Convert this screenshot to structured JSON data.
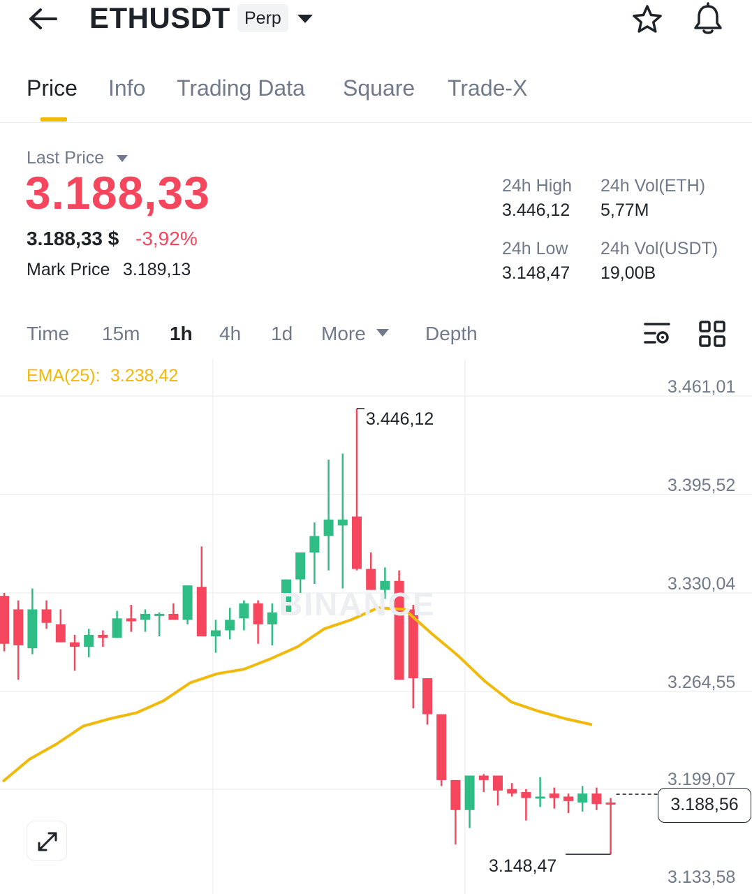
{
  "header": {
    "symbol": "ETHUSDT",
    "badge": "Perp",
    "icons": [
      "back-arrow-icon",
      "chevron-down-icon",
      "star-icon",
      "bell-icon"
    ]
  },
  "tabs": [
    "Price",
    "Info",
    "Trading Data",
    "Square",
    "Trade-X"
  ],
  "active_tab": "Price",
  "price": {
    "last_price_label": "Last Price",
    "last_price": "3.188,33",
    "fiat_price": "3.188,33 $",
    "change_pct": "-3,92%",
    "mark_price_label": "Mark Price",
    "mark_price": "3.189,13"
  },
  "stats": {
    "high_label": "24h High",
    "high": "3.446,12",
    "vol_eth_label": "24h Vol(ETH)",
    "vol_eth": "5,77M",
    "low_label": "24h Low",
    "low": "3.148,47",
    "vol_usdt_label": "24h Vol(USDT)",
    "vol_usdt": "19,00B"
  },
  "intervals": [
    "Time",
    "15m",
    "1h",
    "4h",
    "1d",
    "More",
    "Depth"
  ],
  "active_interval": "1h",
  "colors": {
    "up": "#2ebd85",
    "down": "#f6465d",
    "ema": "#f0b90b",
    "accent": "#f0b90b"
  },
  "chart": {
    "ema_label": "EMA(25):",
    "ema_value": "3.238,42",
    "y_ticks": [
      "3.461,01",
      "3.395,52",
      "3.330,04",
      "3.264,55",
      "3.199,07",
      "3.133,58"
    ],
    "high_marker": "3.446,12",
    "low_marker": "3.148,47",
    "current_price": "3.188,56",
    "watermark": "BINANCE"
  },
  "chart_data": {
    "type": "candlestick",
    "interval": "1h",
    "ylim": [
      3133.58,
      3461.01
    ],
    "candles": [
      {
        "o": 3321,
        "h": 3323,
        "c": 3289,
        "l": 3284,
        "dir": "down"
      },
      {
        "o": 3312,
        "h": 3318,
        "c": 3288,
        "l": 3265,
        "dir": "down"
      },
      {
        "o": 3286,
        "h": 3326,
        "c": 3312,
        "l": 3282,
        "dir": "up"
      },
      {
        "o": 3312,
        "h": 3318,
        "c": 3303,
        "l": 3299,
        "dir": "down"
      },
      {
        "o": 3302,
        "h": 3312,
        "c": 3290,
        "l": 3290,
        "dir": "down"
      },
      {
        "o": 3290,
        "h": 3295,
        "c": 3287,
        "l": 3271,
        "dir": "down"
      },
      {
        "o": 3287,
        "h": 3299,
        "c": 3295,
        "l": 3280,
        "dir": "up"
      },
      {
        "o": 3295,
        "h": 3298,
        "c": 3293,
        "l": 3287,
        "dir": "down"
      },
      {
        "o": 3293,
        "h": 3311,
        "c": 3306,
        "l": 3293,
        "dir": "up"
      },
      {
        "o": 3306,
        "h": 3315,
        "c": 3304,
        "l": 3297,
        "dir": "down"
      },
      {
        "o": 3305,
        "h": 3312,
        "c": 3309,
        "l": 3297,
        "dir": "up"
      },
      {
        "o": 3309,
        "h": 3310,
        "c": 3308,
        "l": 3294,
        "dir": "up"
      },
      {
        "o": 3309,
        "h": 3316,
        "c": 3305,
        "l": 3305,
        "dir": "down"
      },
      {
        "o": 3305,
        "h": 3328,
        "c": 3328,
        "l": 3302,
        "dir": "up"
      },
      {
        "o": 3327,
        "h": 3354,
        "c": 3294,
        "l": 3294,
        "dir": "down"
      },
      {
        "o": 3294,
        "h": 3305,
        "c": 3298,
        "l": 3283,
        "dir": "up"
      },
      {
        "o": 3298,
        "h": 3313,
        "c": 3305,
        "l": 3292,
        "dir": "up"
      },
      {
        "o": 3306,
        "h": 3318,
        "c": 3316,
        "l": 3298,
        "dir": "up"
      },
      {
        "o": 3316,
        "h": 3318,
        "c": 3302,
        "l": 3289,
        "dir": "down"
      },
      {
        "o": 3302,
        "h": 3316,
        "c": 3310,
        "l": 3288,
        "dir": "up"
      },
      {
        "o": 3310,
        "h": 3332,
        "c": 3332,
        "l": 3310,
        "dir": "up"
      },
      {
        "o": 3332,
        "h": 3350,
        "c": 3350,
        "l": 3323,
        "dir": "up"
      },
      {
        "o": 3350,
        "h": 3370,
        "c": 3361,
        "l": 3329,
        "dir": "up"
      },
      {
        "o": 3361,
        "h": 3412,
        "c": 3372,
        "l": 3338,
        "dir": "up"
      },
      {
        "o": 3372,
        "h": 3416,
        "c": 3368,
        "l": 3326,
        "dir": "up"
      },
      {
        "o": 3374,
        "h": 3446.12,
        "c": 3339,
        "l": 3338,
        "dir": "down"
      },
      {
        "o": 3339,
        "h": 3350,
        "c": 3325,
        "l": 3325,
        "dir": "down"
      },
      {
        "o": 3325,
        "h": 3340,
        "c": 3331,
        "l": 3319,
        "dir": "up"
      },
      {
        "o": 3331,
        "h": 3338,
        "c": 3265,
        "l": 3265,
        "dir": "down"
      },
      {
        "o": 3312,
        "h": 3315,
        "c": 3266,
        "l": 3246,
        "dir": "down"
      },
      {
        "o": 3266,
        "h": 3266,
        "c": 3242,
        "l": 3235,
        "dir": "down"
      },
      {
        "o": 3242,
        "h": 3242,
        "c": 3198,
        "l": 3194,
        "dir": "down"
      },
      {
        "o": 3198,
        "h": 3198,
        "c": 3178,
        "l": 3155,
        "dir": "down"
      },
      {
        "o": 3178,
        "h": 3201,
        "c": 3201,
        "l": 3166,
        "dir": "up"
      },
      {
        "o": 3201,
        "h": 3202,
        "c": 3198,
        "l": 3190,
        "dir": "down"
      },
      {
        "o": 3201,
        "h": 3201,
        "c": 3191,
        "l": 3181,
        "dir": "down"
      },
      {
        "o": 3192,
        "h": 3196,
        "c": 3189,
        "l": 3187,
        "dir": "down"
      },
      {
        "o": 3190,
        "h": 3192,
        "c": 3186,
        "l": 3171,
        "dir": "down"
      },
      {
        "o": 3186,
        "h": 3200,
        "c": 3187,
        "l": 3180,
        "dir": "up"
      },
      {
        "o": 3189,
        "h": 3193,
        "c": 3186,
        "l": 3179,
        "dir": "down"
      },
      {
        "o": 3187,
        "h": 3189,
        "c": 3184,
        "l": 3176,
        "dir": "down"
      },
      {
        "o": 3183,
        "h": 3194,
        "c": 3189,
        "l": 3177,
        "dir": "up"
      },
      {
        "o": 3189,
        "h": 3193,
        "c": 3182,
        "l": 3178,
        "dir": "down"
      },
      {
        "o": 3183,
        "h": 3186,
        "c": 3183,
        "l": 3148.47,
        "dir": "down"
      }
    ],
    "ema25": [
      3197,
      3212,
      3222,
      3234,
      3239,
      3243,
      3251,
      3263,
      3269,
      3272,
      3279,
      3287,
      3299,
      3305,
      3313,
      3312,
      3296,
      3281,
      3264,
      3250,
      3244,
      3239,
      3235
    ],
    "annotations": {
      "high": 3446.12,
      "low": 3148.47,
      "current": 3188.56
    }
  }
}
